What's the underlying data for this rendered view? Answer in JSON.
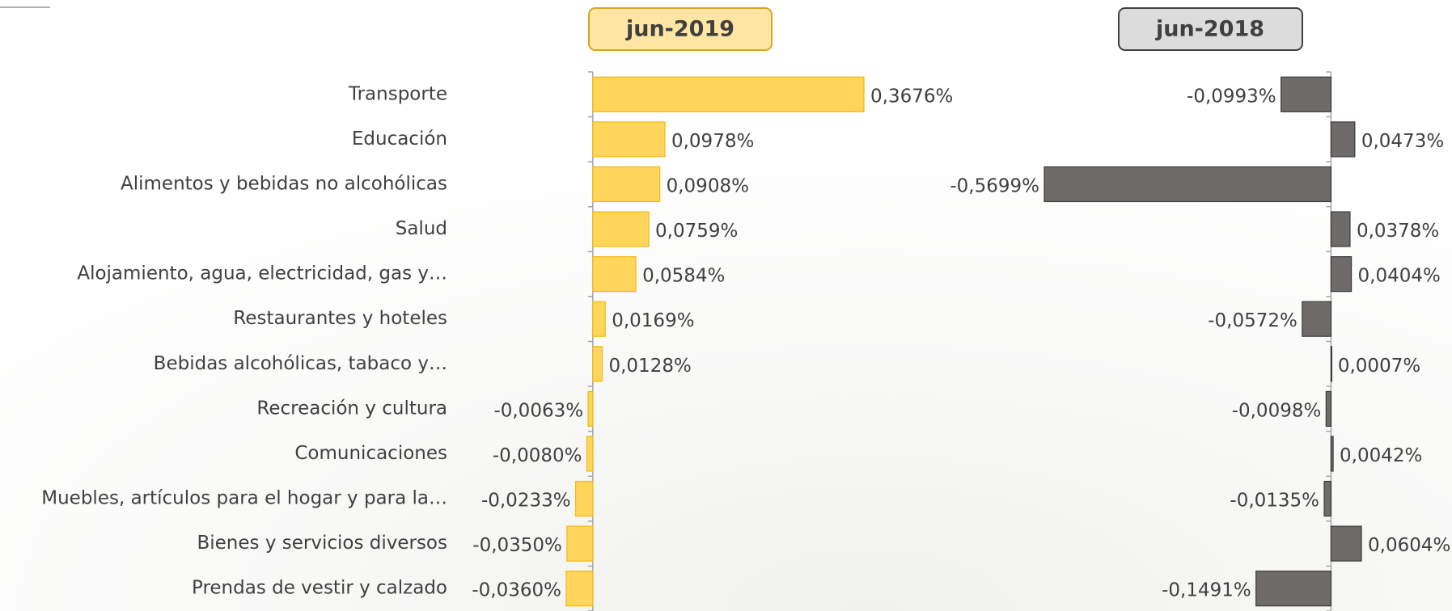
{
  "chart_data": {
    "type": "bar",
    "orientation": "horizontal",
    "categories": [
      "Transporte",
      "Educación",
      "Alimentos y bebidas no alcohólicas",
      "Salud",
      "Alojamiento, agua, electricidad, gas y…",
      "Restaurantes y hoteles",
      "Bebidas alcohólicas, tabaco y…",
      "Recreación y cultura",
      "Comunicaciones",
      "Muebles, artículos para el hogar y para la…",
      "Bienes y servicios diversos",
      "Prendas de vestir y calzado"
    ],
    "series": [
      {
        "name": "jun-2019",
        "color": "#ffd55c",
        "values": [
          0.3676,
          0.0978,
          0.0908,
          0.0759,
          0.0584,
          0.0169,
          0.0128,
          -0.0063,
          -0.008,
          -0.0233,
          -0.035,
          -0.036
        ],
        "value_labels": [
          "0,3676%",
          "0,0978%",
          "0,0908%",
          "0,0759%",
          "0,0584%",
          "0,0169%",
          "0,0128%",
          "-0,0063%",
          "-0,0080%",
          "-0,0233%",
          "-0,0350%",
          "-0,0360%"
        ]
      },
      {
        "name": "jun-2018",
        "color": "#6f6b6b",
        "values": [
          -0.0993,
          0.0473,
          -0.5699,
          0.0378,
          0.0404,
          -0.0572,
          0.0007,
          -0.0098,
          0.0042,
          -0.0135,
          0.0604,
          -0.1491
        ],
        "value_labels": [
          "-0,0993%",
          "0,0473%",
          "-0,5699%",
          "0,0378%",
          "0,0404%",
          "-0,0572%",
          "0,0007%",
          "-0,0098%",
          "0,0042%",
          "-0,0135%",
          "0,0604%",
          "-0,1491%"
        ]
      }
    ]
  }
}
